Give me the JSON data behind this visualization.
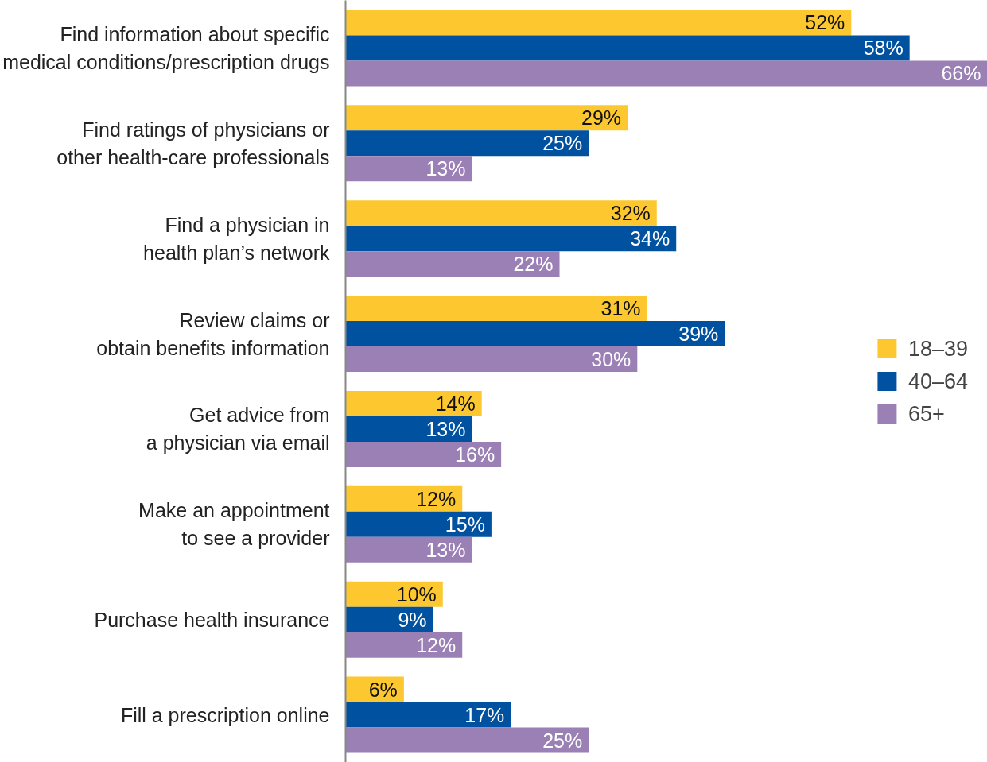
{
  "chart_data": {
    "type": "bar",
    "orientation": "horizontal",
    "legend": "right",
    "grid": false,
    "categories": [
      "Find information about specific\nmedical conditions/prescription drugs",
      "Find ratings of physicians or\nother health-care professionals",
      "Find a physician in\nhealth plan’s network",
      "Review claims or\nobtain benefits information",
      "Get advice from\na physician via email",
      "Make an appointment\nto see a provider",
      "Purchase health insurance",
      "Fill a prescription online"
    ],
    "series": [
      {
        "name": "18–39",
        "color": "#fdc82f",
        "values": [
          52,
          29,
          32,
          31,
          14,
          12,
          10,
          6
        ],
        "value_labels": [
          "52%",
          "29%",
          "32%",
          "31%",
          "14%",
          "12%",
          "10%",
          "6%"
        ]
      },
      {
        "name": "40–64",
        "color": "#0052a0",
        "values": [
          58,
          25,
          34,
          39,
          13,
          15,
          9,
          17
        ],
        "value_labels": [
          "58%",
          "25%",
          "34%",
          "39%",
          "13%",
          "15%",
          "9%",
          "17%"
        ]
      },
      {
        "name": "65+",
        "color": "#9b80b6",
        "values": [
          66,
          13,
          22,
          30,
          16,
          13,
          12,
          25
        ],
        "value_labels": [
          "66%",
          "13%",
          "22%",
          "30%",
          "16%",
          "13%",
          "12%",
          "25%"
        ]
      }
    ]
  }
}
